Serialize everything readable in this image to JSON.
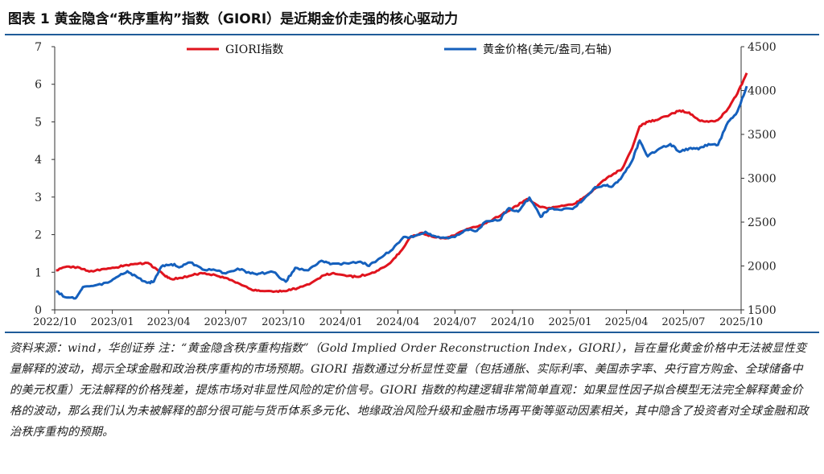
{
  "figure": {
    "title": "图表 1   黄金隐含“秩序重构”指数（GIORI）是近期金价走强的核心驱动力",
    "source_note": "资料来源：wind，华创证券    注：“黄金隐含秩序重构指数”（Gold Implied Order Reconstruction Index，GIORI），旨在量化黄金价格中无法被显性变量解释的波动，揭示全球金融和政治秩序重构的市场预期。GIORI 指数通过分析显性变量（包括通胀、实际利率、美国赤字率、央行官方购金、全球储备中的美元权重）无法解释的价格残差，提炼市场对非显性风险的定价信号。GIORI 指数的构建逻辑非常简单直观：如果显性因子拟合模型无法完全解释黄金价格的波动，那么我们认为未被解释的部分很可能与货币体系多元化、地缘政治风险升级和金融市场再平衡等驱动因素相关，其中隐含了投资者对全球金融和政治秩序重构的预期。"
  },
  "chart_data": {
    "type": "line",
    "title": "",
    "xlabel": "",
    "ylabel": "",
    "y2label": "",
    "grid": false,
    "legend_placement": "top",
    "x_range": [
      "2022-10",
      "2025-10"
    ],
    "x_ticks": [
      "2022/10",
      "2023/01",
      "2023/04",
      "2023/07",
      "2023/10",
      "2024/01",
      "2024/04",
      "2024/07",
      "2024/10",
      "2025/01",
      "2025/04",
      "2025/07",
      "2025/10"
    ],
    "ylim_left": [
      0,
      7
    ],
    "yticks_left": [
      "0",
      "1",
      "2",
      "3",
      "4",
      "5",
      "6",
      "7"
    ],
    "ylim_right": [
      1500,
      4500
    ],
    "yticks_right": [
      "1500",
      "2000",
      "2500",
      "3000",
      "3500",
      "4000",
      "4500"
    ],
    "series": [
      {
        "name": "GIORI指数",
        "axis": "left",
        "color": "#e0141e",
        "points": [
          [
            "2022-10-03",
            1.05
          ],
          [
            "2022-10-20",
            1.15
          ],
          [
            "2022-11-10",
            1.12
          ],
          [
            "2022-11-25",
            1.02
          ],
          [
            "2022-12-15",
            1.08
          ],
          [
            "2023-01-05",
            1.12
          ],
          [
            "2023-01-20",
            1.18
          ],
          [
            "2023-02-10",
            1.22
          ],
          [
            "2023-02-25",
            1.25
          ],
          [
            "2023-03-10",
            1.12
          ],
          [
            "2023-03-25",
            0.92
          ],
          [
            "2023-04-05",
            0.82
          ],
          [
            "2023-04-20",
            0.85
          ],
          [
            "2023-05-10",
            0.93
          ],
          [
            "2023-05-25",
            0.97
          ],
          [
            "2023-06-15",
            0.92
          ],
          [
            "2023-07-01",
            0.85
          ],
          [
            "2023-07-20",
            0.72
          ],
          [
            "2023-08-10",
            0.55
          ],
          [
            "2023-08-25",
            0.5
          ],
          [
            "2023-09-15",
            0.48
          ],
          [
            "2023-10-01",
            0.5
          ],
          [
            "2023-10-15",
            0.55
          ],
          [
            "2023-10-25",
            0.58
          ],
          [
            "2023-11-15",
            0.72
          ],
          [
            "2023-12-05",
            0.92
          ],
          [
            "2023-12-20",
            0.98
          ],
          [
            "2024-01-10",
            0.9
          ],
          [
            "2024-01-25",
            0.88
          ],
          [
            "2024-02-15",
            0.95
          ],
          [
            "2024-03-01",
            1.05
          ],
          [
            "2024-03-20",
            1.25
          ],
          [
            "2024-04-05",
            1.55
          ],
          [
            "2024-04-20",
            1.92
          ],
          [
            "2024-05-10",
            2.05
          ],
          [
            "2024-05-25",
            1.95
          ],
          [
            "2024-06-15",
            1.9
          ],
          [
            "2024-07-01",
            1.98
          ],
          [
            "2024-07-20",
            2.15
          ],
          [
            "2024-08-10",
            2.25
          ],
          [
            "2024-08-25",
            2.35
          ],
          [
            "2024-09-15",
            2.55
          ],
          [
            "2024-10-01",
            2.7
          ],
          [
            "2024-10-15",
            2.85
          ],
          [
            "2024-10-25",
            2.95
          ],
          [
            "2024-11-10",
            2.78
          ],
          [
            "2024-11-25",
            2.7
          ],
          [
            "2024-12-15",
            2.75
          ],
          [
            "2025-01-05",
            2.8
          ],
          [
            "2025-01-20",
            2.95
          ],
          [
            "2025-02-05",
            3.15
          ],
          [
            "2025-02-20",
            3.4
          ],
          [
            "2025-03-10",
            3.6
          ],
          [
            "2025-03-25",
            3.75
          ],
          [
            "2025-04-10",
            4.3
          ],
          [
            "2025-04-22",
            4.88
          ],
          [
            "2025-05-05",
            5.0
          ],
          [
            "2025-05-20",
            5.05
          ],
          [
            "2025-06-10",
            5.2
          ],
          [
            "2025-06-25",
            5.3
          ],
          [
            "2025-07-10",
            5.25
          ],
          [
            "2025-07-25",
            5.05
          ],
          [
            "2025-08-10",
            5.0
          ],
          [
            "2025-08-25",
            5.05
          ],
          [
            "2025-09-10",
            5.35
          ],
          [
            "2025-09-25",
            5.75
          ],
          [
            "2025-10-10",
            6.3
          ]
        ]
      },
      {
        "name": "黄金价格(美元/盎司,右轴)",
        "axis": "right",
        "color": "#1560bd",
        "points": [
          [
            "2022-10-03",
            1710
          ],
          [
            "2022-10-20",
            1640
          ],
          [
            "2022-11-03",
            1630
          ],
          [
            "2022-11-15",
            1760
          ],
          [
            "2022-12-05",
            1780
          ],
          [
            "2022-12-25",
            1810
          ],
          [
            "2023-01-10",
            1880
          ],
          [
            "2023-01-25",
            1940
          ],
          [
            "2023-02-10",
            1870
          ],
          [
            "2023-02-25",
            1810
          ],
          [
            "2023-03-08",
            1820
          ],
          [
            "2023-03-20",
            1990
          ],
          [
            "2023-04-05",
            2020
          ],
          [
            "2023-04-20",
            1990
          ],
          [
            "2023-05-05",
            2040
          ],
          [
            "2023-05-25",
            1960
          ],
          [
            "2023-06-15",
            1950
          ],
          [
            "2023-07-01",
            1915
          ],
          [
            "2023-07-20",
            1970
          ],
          [
            "2023-08-10",
            1915
          ],
          [
            "2023-08-25",
            1915
          ],
          [
            "2023-09-15",
            1930
          ],
          [
            "2023-10-05",
            1820
          ],
          [
            "2023-10-20",
            1980
          ],
          [
            "2023-11-10",
            1950
          ],
          [
            "2023-12-01",
            2060
          ],
          [
            "2023-12-15",
            2020
          ],
          [
            "2024-01-10",
            2030
          ],
          [
            "2024-02-01",
            2050
          ],
          [
            "2024-02-15",
            2000
          ],
          [
            "2024-03-01",
            2080
          ],
          [
            "2024-03-20",
            2170
          ],
          [
            "2024-04-10",
            2330
          ],
          [
            "2024-04-25",
            2330
          ],
          [
            "2024-05-15",
            2390
          ],
          [
            "2024-05-30",
            2340
          ],
          [
            "2024-06-15",
            2320
          ],
          [
            "2024-07-01",
            2330
          ],
          [
            "2024-07-20",
            2410
          ],
          [
            "2024-08-05",
            2400
          ],
          [
            "2024-08-20",
            2510
          ],
          [
            "2024-09-10",
            2520
          ],
          [
            "2024-09-25",
            2660
          ],
          [
            "2024-10-10",
            2620
          ],
          [
            "2024-10-28",
            2780
          ],
          [
            "2024-11-15",
            2560
          ],
          [
            "2024-11-28",
            2650
          ],
          [
            "2024-12-15",
            2640
          ],
          [
            "2025-01-05",
            2650
          ],
          [
            "2025-01-25",
            2780
          ],
          [
            "2025-02-10",
            2900
          ],
          [
            "2025-02-25",
            2920
          ],
          [
            "2025-03-10",
            2910
          ],
          [
            "2025-03-25",
            3020
          ],
          [
            "2025-04-10",
            3200
          ],
          [
            "2025-04-22",
            3430
          ],
          [
            "2025-05-05",
            3250
          ],
          [
            "2025-05-20",
            3320
          ],
          [
            "2025-06-10",
            3390
          ],
          [
            "2025-06-25",
            3300
          ],
          [
            "2025-07-10",
            3340
          ],
          [
            "2025-07-25",
            3330
          ],
          [
            "2025-08-10",
            3390
          ],
          [
            "2025-08-25",
            3380
          ],
          [
            "2025-09-10",
            3640
          ],
          [
            "2025-09-25",
            3760
          ],
          [
            "2025-10-10",
            4050
          ]
        ]
      }
    ]
  }
}
